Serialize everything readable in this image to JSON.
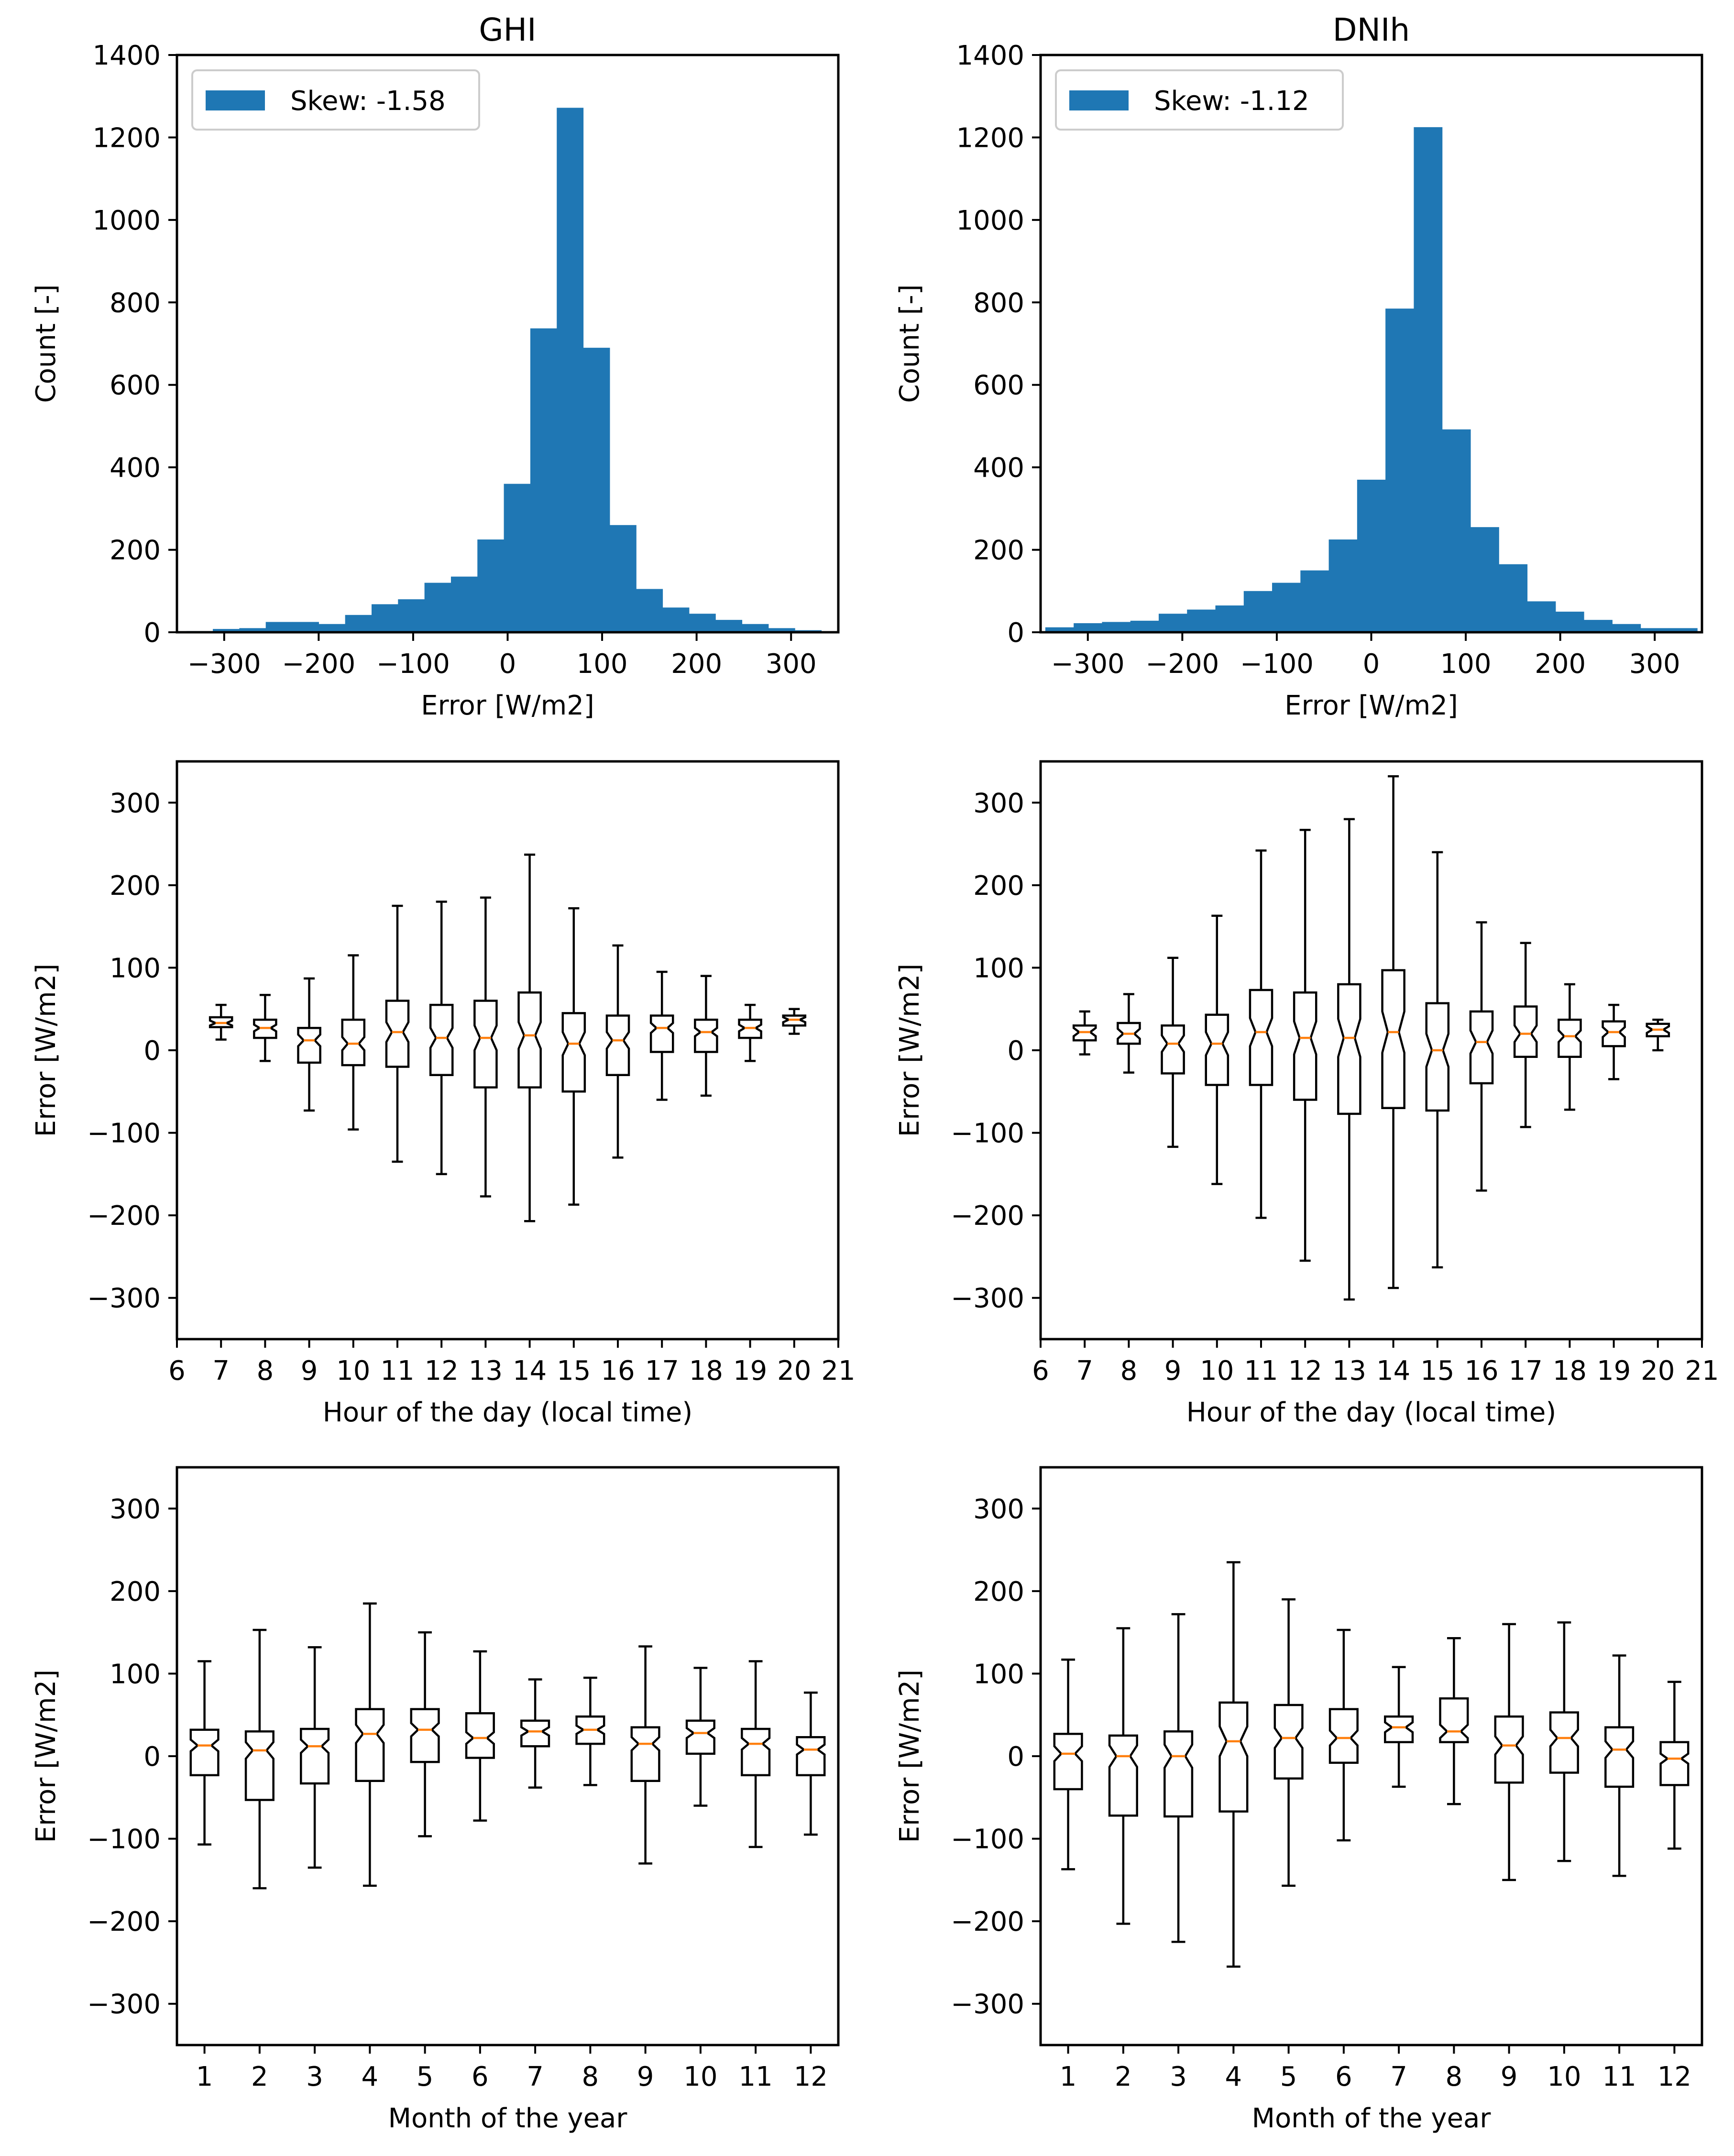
{
  "colors": {
    "bar": "#1f77b4",
    "median": "#ff7f0e",
    "frame": "#000000"
  },
  "chart_data": [
    {
      "id": "ghi-hist",
      "type": "bar",
      "title": "GHI",
      "xlabel": "Error [W/m2]",
      "ylabel": "Count [-]",
      "xlim": [
        -350,
        350
      ],
      "ylim": [
        0,
        1400
      ],
      "xticks": [
        -300,
        -200,
        -100,
        0,
        100,
        200,
        300
      ],
      "yticks": [
        0,
        200,
        400,
        600,
        800,
        1000,
        1200,
        1400
      ],
      "legend": {
        "placement": "upper-left",
        "label": "Skew: -1.58"
      },
      "bin_edges": [
        -340,
        -312,
        -284,
        -256,
        -228,
        -200,
        -172,
        -144,
        -116,
        -88,
        -60,
        -32,
        -4,
        24,
        52,
        80,
        108,
        136,
        164,
        192,
        220,
        248,
        276,
        304,
        332
      ],
      "values": [
        3,
        8,
        10,
        25,
        25,
        20,
        42,
        68,
        80,
        120,
        135,
        225,
        360,
        737,
        1272,
        690,
        260,
        105,
        60,
        45,
        30,
        20,
        10,
        5
      ]
    },
    {
      "id": "dnih-hist",
      "type": "bar",
      "title": "DNIh",
      "xlabel": "Error [W/m2]",
      "ylabel": "Count [-]",
      "xlim": [
        -350,
        350
      ],
      "ylim": [
        0,
        1400
      ],
      "xticks": [
        -300,
        -200,
        -100,
        0,
        100,
        200,
        300
      ],
      "yticks": [
        0,
        200,
        400,
        600,
        800,
        1000,
        1200,
        1400
      ],
      "legend": {
        "placement": "upper-left",
        "label": "Skew: -1.12"
      },
      "bin_edges": [
        -345,
        -315,
        -285,
        -255,
        -225,
        -195,
        -165,
        -135,
        -105,
        -75,
        -45,
        -15,
        15,
        45,
        75,
        105,
        135,
        165,
        195,
        225,
        255,
        285,
        315,
        345
      ],
      "values": [
        12,
        22,
        25,
        28,
        45,
        55,
        65,
        100,
        120,
        150,
        225,
        370,
        785,
        1225,
        492,
        255,
        165,
        75,
        50,
        30,
        20,
        10,
        10
      ]
    },
    {
      "id": "ghi-hour",
      "type": "box",
      "xlabel": "Hour of the day (local time)",
      "ylabel": "Error [W/m2]",
      "xlim": [
        6,
        21
      ],
      "ylim": [
        -350,
        350
      ],
      "xticks": [
        6,
        7,
        8,
        9,
        10,
        11,
        12,
        13,
        14,
        15,
        16,
        17,
        18,
        19,
        20,
        21
      ],
      "yticks": [
        -300,
        -200,
        -100,
        0,
        100,
        200,
        300
      ],
      "boxes": [
        {
          "x": 7,
          "whislo": 13,
          "q1": 28,
          "med": 33,
          "q3": 40,
          "whishi": 55,
          "cilo": 30,
          "cihi": 36
        },
        {
          "x": 8,
          "whislo": -13,
          "q1": 15,
          "med": 27,
          "q3": 37,
          "whishi": 67,
          "cilo": 23,
          "cihi": 31
        },
        {
          "x": 9,
          "whislo": -73,
          "q1": -15,
          "med": 12,
          "q3": 27,
          "whishi": 87,
          "cilo": 5,
          "cihi": 19
        },
        {
          "x": 10,
          "whislo": -96,
          "q1": -18,
          "med": 8,
          "q3": 37,
          "whishi": 115,
          "cilo": 0,
          "cihi": 16
        },
        {
          "x": 11,
          "whislo": -135,
          "q1": -20,
          "med": 22,
          "q3": 60,
          "whishi": 175,
          "cilo": 10,
          "cihi": 34
        },
        {
          "x": 12,
          "whislo": -150,
          "q1": -30,
          "med": 15,
          "q3": 55,
          "whishi": 180,
          "cilo": 3,
          "cihi": 27
        },
        {
          "x": 13,
          "whislo": -177,
          "q1": -45,
          "med": 15,
          "q3": 60,
          "whishi": 185,
          "cilo": 0,
          "cihi": 30
        },
        {
          "x": 14,
          "whislo": -207,
          "q1": -45,
          "med": 18,
          "q3": 70,
          "whishi": 237,
          "cilo": 2,
          "cihi": 34
        },
        {
          "x": 15,
          "whislo": -187,
          "q1": -50,
          "med": 8,
          "q3": 45,
          "whishi": 172,
          "cilo": -6,
          "cihi": 22
        },
        {
          "x": 16,
          "whislo": -130,
          "q1": -30,
          "med": 12,
          "q3": 42,
          "whishi": 127,
          "cilo": 2,
          "cihi": 22
        },
        {
          "x": 17,
          "whislo": -60,
          "q1": -2,
          "med": 27,
          "q3": 42,
          "whishi": 95,
          "cilo": 21,
          "cihi": 33
        },
        {
          "x": 18,
          "whislo": -55,
          "q1": -2,
          "med": 22,
          "q3": 37,
          "whishi": 90,
          "cilo": 17,
          "cihi": 27
        },
        {
          "x": 19,
          "whislo": -13,
          "q1": 15,
          "med": 27,
          "q3": 37,
          "whishi": 55,
          "cilo": 23,
          "cihi": 31
        },
        {
          "x": 20,
          "whislo": 20,
          "q1": 30,
          "med": 37,
          "q3": 42,
          "whishi": 50,
          "cilo": 34,
          "cihi": 40
        }
      ]
    },
    {
      "id": "dnih-hour",
      "type": "box",
      "xlabel": "Hour of the day (local time)",
      "ylabel": "Error [W/m2]",
      "xlim": [
        6,
        21
      ],
      "ylim": [
        -350,
        350
      ],
      "xticks": [
        6,
        7,
        8,
        9,
        10,
        11,
        12,
        13,
        14,
        15,
        16,
        17,
        18,
        19,
        20,
        21
      ],
      "yticks": [
        -300,
        -200,
        -100,
        0,
        100,
        200,
        300
      ],
      "boxes": [
        {
          "x": 7,
          "whislo": -5,
          "q1": 12,
          "med": 22,
          "q3": 30,
          "whishi": 47,
          "cilo": 17,
          "cihi": 27
        },
        {
          "x": 8,
          "whislo": -27,
          "q1": 8,
          "med": 20,
          "q3": 33,
          "whishi": 68,
          "cilo": 14,
          "cihi": 26
        },
        {
          "x": 9,
          "whislo": -117,
          "q1": -28,
          "med": 8,
          "q3": 30,
          "whishi": 112,
          "cilo": -2,
          "cihi": 18
        },
        {
          "x": 10,
          "whislo": -162,
          "q1": -42,
          "med": 8,
          "q3": 43,
          "whishi": 163,
          "cilo": -6,
          "cihi": 22
        },
        {
          "x": 11,
          "whislo": -203,
          "q1": -42,
          "med": 22,
          "q3": 73,
          "whishi": 242,
          "cilo": 5,
          "cihi": 39
        },
        {
          "x": 12,
          "whislo": -255,
          "q1": -60,
          "med": 15,
          "q3": 70,
          "whishi": 267,
          "cilo": -5,
          "cihi": 35
        },
        {
          "x": 13,
          "whislo": -302,
          "q1": -77,
          "med": 15,
          "q3": 80,
          "whishi": 280,
          "cilo": -8,
          "cihi": 38
        },
        {
          "x": 14,
          "whislo": -288,
          "q1": -70,
          "med": 22,
          "q3": 97,
          "whishi": 332,
          "cilo": -3,
          "cihi": 47
        },
        {
          "x": 15,
          "whislo": -263,
          "q1": -73,
          "med": 0,
          "q3": 57,
          "whishi": 240,
          "cilo": -20,
          "cihi": 20
        },
        {
          "x": 16,
          "whislo": -170,
          "q1": -40,
          "med": 10,
          "q3": 47,
          "whishi": 155,
          "cilo": -4,
          "cihi": 24
        },
        {
          "x": 17,
          "whislo": -93,
          "q1": -8,
          "med": 20,
          "q3": 53,
          "whishi": 130,
          "cilo": 10,
          "cihi": 30
        },
        {
          "x": 18,
          "whislo": -72,
          "q1": -8,
          "med": 17,
          "q3": 37,
          "whishi": 80,
          "cilo": 10,
          "cihi": 24
        },
        {
          "x": 19,
          "whislo": -35,
          "q1": 5,
          "med": 22,
          "q3": 35,
          "whishi": 55,
          "cilo": 16,
          "cihi": 28
        },
        {
          "x": 20,
          "whislo": 0,
          "q1": 17,
          "med": 25,
          "q3": 32,
          "whishi": 37,
          "cilo": 21,
          "cihi": 29
        }
      ]
    },
    {
      "id": "ghi-month",
      "type": "box",
      "xlabel": "Month of the year",
      "ylabel": "Error [W/m2]",
      "xlim": [
        0.5,
        12.5
      ],
      "ylim": [
        -350,
        350
      ],
      "xticks": [
        1,
        2,
        3,
        4,
        5,
        6,
        7,
        8,
        9,
        10,
        11,
        12
      ],
      "yticks": [
        -300,
        -200,
        -100,
        0,
        100,
        200,
        300
      ],
      "boxes": [
        {
          "x": 1,
          "whislo": -107,
          "q1": -23,
          "med": 13,
          "q3": 32,
          "whishi": 115,
          "cilo": 6,
          "cihi": 20
        },
        {
          "x": 2,
          "whislo": -160,
          "q1": -53,
          "med": 7,
          "q3": 30,
          "whishi": 153,
          "cilo": -3,
          "cihi": 17
        },
        {
          "x": 3,
          "whislo": -135,
          "q1": -33,
          "med": 12,
          "q3": 33,
          "whishi": 132,
          "cilo": 4,
          "cihi": 20
        },
        {
          "x": 4,
          "whislo": -157,
          "q1": -30,
          "med": 27,
          "q3": 57,
          "whishi": 185,
          "cilo": 16,
          "cihi": 38
        },
        {
          "x": 5,
          "whislo": -97,
          "q1": -7,
          "med": 32,
          "q3": 57,
          "whishi": 150,
          "cilo": 24,
          "cihi": 40
        },
        {
          "x": 6,
          "whislo": -78,
          "q1": -2,
          "med": 22,
          "q3": 52,
          "whishi": 127,
          "cilo": 15,
          "cihi": 29
        },
        {
          "x": 7,
          "whislo": -38,
          "q1": 12,
          "med": 30,
          "q3": 43,
          "whishi": 93,
          "cilo": 25,
          "cihi": 35
        },
        {
          "x": 8,
          "whislo": -35,
          "q1": 15,
          "med": 32,
          "q3": 48,
          "whishi": 95,
          "cilo": 27,
          "cihi": 37
        },
        {
          "x": 9,
          "whislo": -130,
          "q1": -30,
          "med": 15,
          "q3": 35,
          "whishi": 133,
          "cilo": 7,
          "cihi": 23
        },
        {
          "x": 10,
          "whislo": -60,
          "q1": 3,
          "med": 28,
          "q3": 43,
          "whishi": 107,
          "cilo": 22,
          "cihi": 34
        },
        {
          "x": 11,
          "whislo": -110,
          "q1": -23,
          "med": 15,
          "q3": 33,
          "whishi": 115,
          "cilo": 8,
          "cihi": 22
        },
        {
          "x": 12,
          "whislo": -95,
          "q1": -23,
          "med": 8,
          "q3": 23,
          "whishi": 77,
          "cilo": 2,
          "cihi": 14
        }
      ]
    },
    {
      "id": "dnih-month",
      "type": "box",
      "xlabel": "Month of the year",
      "ylabel": "Error [W/m2]",
      "xlim": [
        0.5,
        12.5
      ],
      "ylim": [
        -350,
        350
      ],
      "xticks": [
        1,
        2,
        3,
        4,
        5,
        6,
        7,
        8,
        9,
        10,
        11,
        12
      ],
      "yticks": [
        -300,
        -200,
        -100,
        0,
        100,
        200,
        300
      ],
      "boxes": [
        {
          "x": 1,
          "whislo": -137,
          "q1": -40,
          "med": 3,
          "q3": 27,
          "whishi": 117,
          "cilo": -6,
          "cihi": 12
        },
        {
          "x": 2,
          "whislo": -203,
          "q1": -72,
          "med": 0,
          "q3": 25,
          "whishi": 155,
          "cilo": -13,
          "cihi": 13
        },
        {
          "x": 3,
          "whislo": -225,
          "q1": -73,
          "med": 0,
          "q3": 30,
          "whishi": 172,
          "cilo": -14,
          "cihi": 14
        },
        {
          "x": 4,
          "whislo": -255,
          "q1": -67,
          "med": 18,
          "q3": 65,
          "whishi": 235,
          "cilo": 0,
          "cihi": 36
        },
        {
          "x": 5,
          "whislo": -157,
          "q1": -27,
          "med": 22,
          "q3": 62,
          "whishi": 190,
          "cilo": 10,
          "cihi": 34
        },
        {
          "x": 6,
          "whislo": -102,
          "q1": -8,
          "med": 22,
          "q3": 57,
          "whishi": 153,
          "cilo": 13,
          "cihi": 31
        },
        {
          "x": 7,
          "whislo": -37,
          "q1": 17,
          "med": 35,
          "q3": 48,
          "whishi": 108,
          "cilo": 29,
          "cihi": 41
        },
        {
          "x": 8,
          "whislo": -58,
          "q1": 17,
          "med": 30,
          "q3": 70,
          "whishi": 143,
          "cilo": 22,
          "cihi": 38
        },
        {
          "x": 9,
          "whislo": -150,
          "q1": -32,
          "med": 13,
          "q3": 48,
          "whishi": 160,
          "cilo": 2,
          "cihi": 24
        },
        {
          "x": 10,
          "whislo": -127,
          "q1": -20,
          "med": 22,
          "q3": 53,
          "whishi": 162,
          "cilo": 12,
          "cihi": 32
        },
        {
          "x": 11,
          "whislo": -145,
          "q1": -37,
          "med": 8,
          "q3": 35,
          "whishi": 122,
          "cilo": -2,
          "cihi": 18
        },
        {
          "x": 12,
          "whislo": -112,
          "q1": -35,
          "med": -3,
          "q3": 17,
          "whishi": 90,
          "cilo": -9,
          "cihi": 3
        }
      ]
    }
  ]
}
